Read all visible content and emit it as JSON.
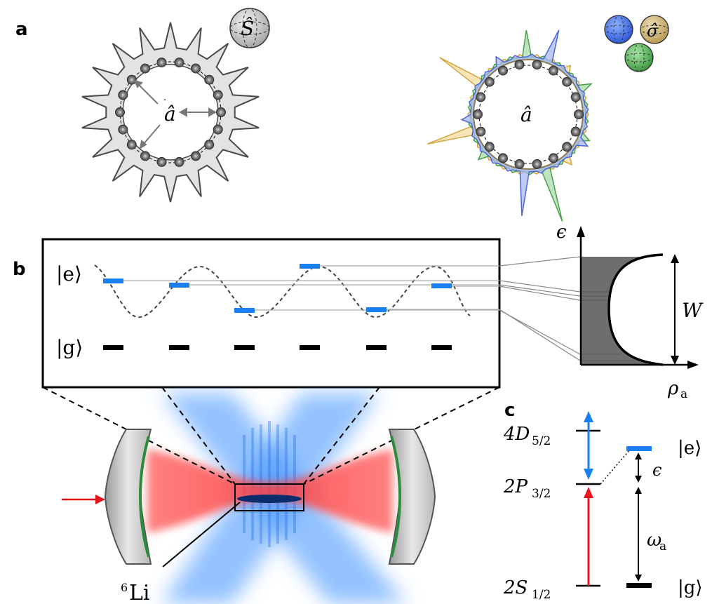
{
  "panels": {
    "a": "a",
    "b": "b",
    "c": "c"
  },
  "panel_a": {
    "left_mode_symbol": "â",
    "left_spin_symbol": "Ŝ",
    "right_mode_symbol": "â",
    "right_spin_symbol": "σ̂",
    "colors": {
      "gray": "#d9d9d9",
      "blue": "#5b7be3",
      "yellow": "#e8c46a",
      "green": "#6dbb6d"
    }
  },
  "panel_b": {
    "excited_label": "|e⟩",
    "ground_label": "|g⟩",
    "dos_y_axis": "ϵ",
    "dos_x_axis": "ρ",
    "dos_x_axis_subscript": "a",
    "width_label": "W",
    "species_label": "Li",
    "species_mass_number": "6",
    "colors": {
      "excited_level": "#1a7ff0",
      "ground_level": "#000000",
      "dos_fill": "#6e6e6e"
    }
  },
  "panel_c": {
    "level_4D": "4D",
    "level_4D_sub": "5/2",
    "level_2P": "2P",
    "level_2P_sub": "3/2",
    "level_2S": "2S",
    "level_2S_sub": "1/2",
    "excited_label": "|e⟩",
    "ground_label": "|g⟩",
    "detuning_label": "ϵ",
    "omega_label": "ω",
    "omega_sub": "a",
    "colors": {
      "red": "#e8141b",
      "blue": "#1a7ff0"
    }
  }
}
